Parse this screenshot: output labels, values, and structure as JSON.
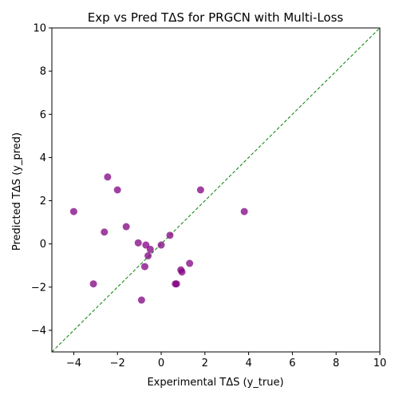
{
  "chart_data": {
    "type": "scatter",
    "title": "Exp vs Pred TΔS for PRGCN with Multi-Loss",
    "xlabel": "Experimental TΔS (y_true)",
    "ylabel": "Predicted TΔS (y_pred)",
    "xlim": [
      -5,
      10
    ],
    "ylim": [
      -5,
      10
    ],
    "xticks": [
      -4,
      -2,
      0,
      2,
      4,
      6,
      8,
      10
    ],
    "yticks": [
      -4,
      -2,
      0,
      2,
      4,
      6,
      8,
      10
    ],
    "grid": false,
    "marker_color": "#800080",
    "reference_line": {
      "style": "dashed",
      "color": "#008000",
      "from": [
        -5,
        -5
      ],
      "to": [
        10,
        10
      ]
    },
    "points": [
      {
        "x": -4.0,
        "y": 1.5
      },
      {
        "x": -3.1,
        "y": -1.85
      },
      {
        "x": -2.6,
        "y": 0.55
      },
      {
        "x": -2.45,
        "y": 3.1
      },
      {
        "x": -2.0,
        "y": 2.5
      },
      {
        "x": -1.6,
        "y": 0.8
      },
      {
        "x": -1.05,
        "y": 0.05
      },
      {
        "x": -0.9,
        "y": -2.6
      },
      {
        "x": -0.75,
        "y": -1.05
      },
      {
        "x": -0.7,
        "y": -0.05
      },
      {
        "x": -0.6,
        "y": -0.55
      },
      {
        "x": -0.5,
        "y": -0.25
      },
      {
        "x": 0.0,
        "y": -0.05
      },
      {
        "x": 0.4,
        "y": 0.4
      },
      {
        "x": 0.65,
        "y": -1.85
      },
      {
        "x": 0.7,
        "y": -1.85
      },
      {
        "x": 0.9,
        "y": -1.2
      },
      {
        "x": 0.95,
        "y": -1.3
      },
      {
        "x": 1.3,
        "y": -0.9
      },
      {
        "x": 1.8,
        "y": 2.5
      },
      {
        "x": 3.8,
        "y": 1.5
      }
    ]
  }
}
